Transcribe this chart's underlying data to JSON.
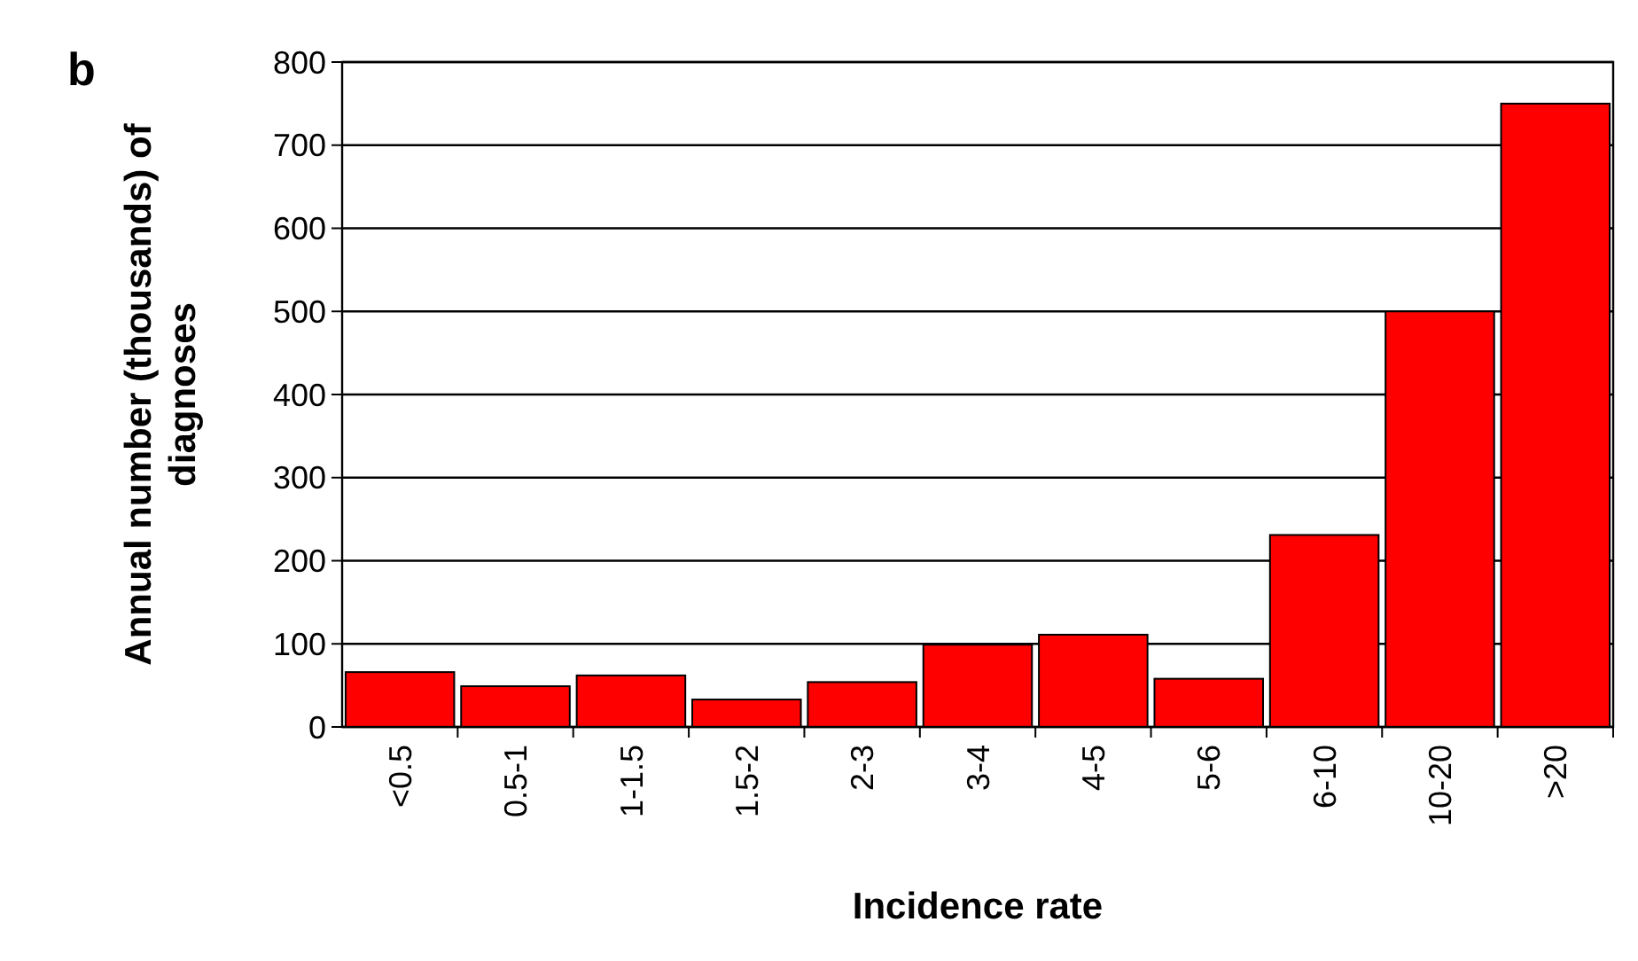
{
  "chart_data": {
    "type": "bar",
    "title": "b",
    "xlabel": "Incidence rate",
    "ylabel": "Annual number (thousands) of diagnoses",
    "categories": [
      "<0.5",
      "0.5-1",
      "1-1.5",
      "1.5-2",
      "2-3",
      "3-4",
      "4-5",
      "5-6",
      "6-10",
      "10-20",
      ">20"
    ],
    "values": [
      66,
      49,
      62,
      33,
      54,
      99,
      111,
      58,
      231,
      500,
      750
    ],
    "color": "#ff0000",
    "ylim": [
      0,
      800
    ],
    "yticks": [
      0,
      100,
      200,
      300,
      400,
      500,
      600,
      700,
      800
    ],
    "grid": "y"
  }
}
